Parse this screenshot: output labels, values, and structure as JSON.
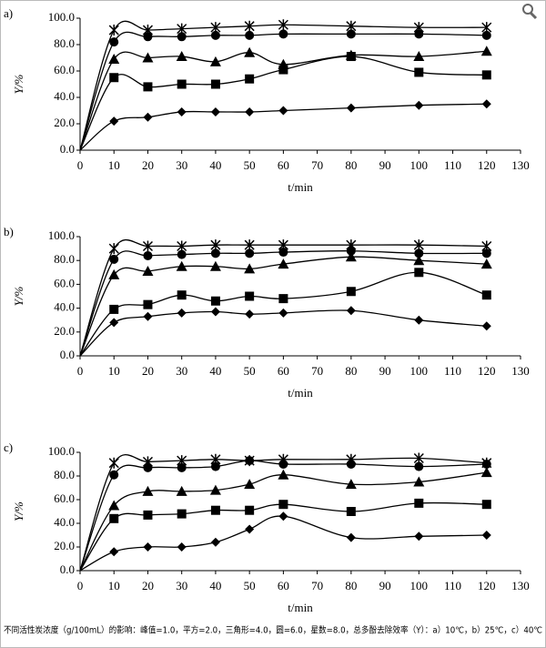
{
  "chart_data": [
    {
      "type": "line",
      "label": "a)",
      "xlabel": "t/min",
      "ylabel": "Y/%",
      "x": [
        0,
        10,
        20,
        30,
        40,
        50,
        60,
        80,
        100,
        120
      ],
      "xlim": [
        0,
        130
      ],
      "ylim": [
        0,
        100
      ],
      "xticks": [
        0,
        10,
        20,
        30,
        40,
        50,
        60,
        70,
        80,
        90,
        100,
        110,
        120,
        130
      ],
      "yticks": [
        {
          "value": 0,
          "label": "0.0"
        },
        {
          "value": 20,
          "label": "20.0"
        },
        {
          "value": 40,
          "label": "40.0"
        },
        {
          "value": 60,
          "label": "60.0"
        },
        {
          "value": 80,
          "label": "80.0"
        },
        {
          "value": 100,
          "label": "100.0"
        }
      ],
      "series": [
        {
          "marker": "diamond",
          "color": "#000000",
          "values": [
            0,
            22,
            25,
            29,
            29,
            29,
            30,
            32,
            34,
            35
          ]
        },
        {
          "marker": "square",
          "color": "#000000",
          "values": [
            0,
            55,
            48,
            50,
            50,
            54,
            61,
            71,
            59,
            57
          ]
        },
        {
          "marker": "triangle",
          "color": "#000000",
          "values": [
            0,
            69,
            70,
            71,
            67,
            74,
            65,
            72,
            71,
            75
          ]
        },
        {
          "marker": "circle",
          "color": "#000000",
          "values": [
            0,
            82,
            86,
            86,
            87,
            87,
            88,
            88,
            88,
            87
          ]
        },
        {
          "marker": "star",
          "color": "#000000",
          "values": [
            0,
            91,
            91,
            92,
            93,
            94,
            95,
            94,
            93,
            93
          ]
        }
      ]
    },
    {
      "type": "line",
      "label": "b)",
      "xlabel": "t/min",
      "ylabel": "Y/%",
      "x": [
        0,
        10,
        20,
        30,
        40,
        50,
        60,
        80,
        100,
        120
      ],
      "xlim": [
        0,
        130
      ],
      "ylim": [
        0,
        100
      ],
      "xticks": [
        0,
        10,
        20,
        30,
        40,
        50,
        60,
        70,
        80,
        90,
        100,
        110,
        120,
        130
      ],
      "yticks": [
        {
          "value": 0,
          "label": "0.0"
        },
        {
          "value": 20,
          "label": "20.0"
        },
        {
          "value": 40,
          "label": "40.0"
        },
        {
          "value": 60,
          "label": "60.0"
        },
        {
          "value": 80,
          "label": "80.0"
        },
        {
          "value": 100,
          "label": "100.0"
        }
      ],
      "series": [
        {
          "marker": "diamond",
          "color": "#000000",
          "values": [
            0,
            28,
            33,
            36,
            37,
            35,
            36,
            38,
            30,
            25
          ]
        },
        {
          "marker": "square",
          "color": "#000000",
          "values": [
            0,
            39,
            43,
            51,
            46,
            50,
            48,
            54,
            70,
            51
          ]
        },
        {
          "marker": "triangle",
          "color": "#000000",
          "values": [
            0,
            68,
            71,
            75,
            75,
            73,
            77,
            83,
            80,
            77
          ]
        },
        {
          "marker": "circle",
          "color": "#000000",
          "values": [
            0,
            81,
            84,
            85,
            86,
            86,
            87,
            88,
            86,
            86
          ]
        },
        {
          "marker": "star",
          "color": "#000000",
          "values": [
            0,
            90,
            92,
            92,
            93,
            93,
            93,
            93,
            93,
            92
          ]
        }
      ]
    },
    {
      "type": "line",
      "label": "c)",
      "xlabel": "t/min",
      "ylabel": "Y/%",
      "x": [
        0,
        10,
        20,
        30,
        40,
        50,
        60,
        80,
        100,
        120
      ],
      "xlim": [
        0,
        130
      ],
      "ylim": [
        0,
        100
      ],
      "xticks": [
        0,
        10,
        20,
        30,
        40,
        50,
        60,
        70,
        80,
        90,
        100,
        110,
        120,
        130
      ],
      "yticks": [
        {
          "value": 0,
          "label": "0.0"
        },
        {
          "value": 20,
          "label": "20.0"
        },
        {
          "value": 40,
          "label": "40.0"
        },
        {
          "value": 60,
          "label": "60.0"
        },
        {
          "value": 80,
          "label": "80.0"
        },
        {
          "value": 100,
          "label": "100.0"
        }
      ],
      "series": [
        {
          "marker": "diamond",
          "color": "#000000",
          "values": [
            0,
            16,
            20,
            20,
            24,
            35,
            46,
            28,
            29,
            30
          ]
        },
        {
          "marker": "square",
          "color": "#000000",
          "values": [
            0,
            44,
            47,
            48,
            51,
            51,
            56,
            50,
            57,
            56
          ]
        },
        {
          "marker": "triangle",
          "color": "#000000",
          "values": [
            0,
            55,
            67,
            67,
            68,
            73,
            81,
            73,
            75,
            83
          ]
        },
        {
          "marker": "circle",
          "color": "#000000",
          "values": [
            0,
            81,
            87,
            87,
            88,
            93,
            90,
            90,
            88,
            90
          ]
        },
        {
          "marker": "star",
          "color": "#000000",
          "values": [
            0,
            91,
            92,
            93,
            94,
            93,
            94,
            94,
            95,
            91
          ]
        }
      ]
    }
  ],
  "caption": "不同活性炭浓度（g/100mL）的影响：峰值=1.0，平方=2.0，三角形=4.0，圆=6.0，星数=8.0，总多酚去除效率（Y）：a）10℃，b）25℃，c）40℃"
}
